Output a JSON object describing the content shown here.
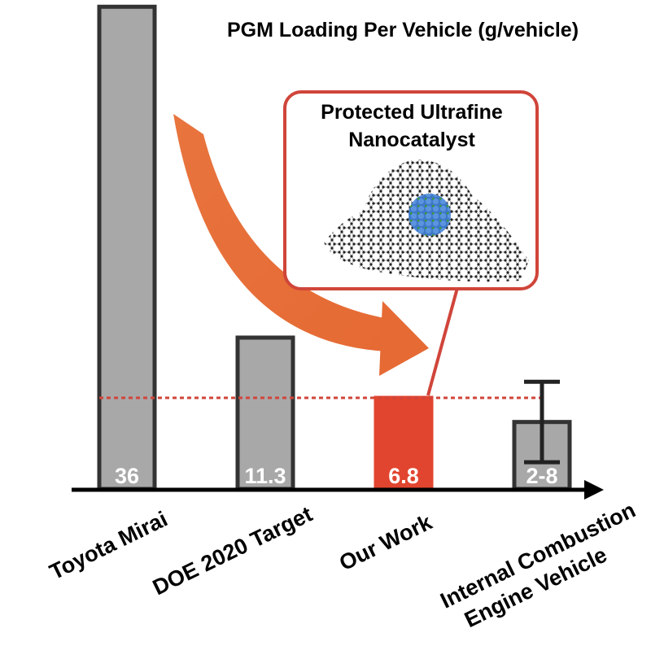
{
  "chart_data": {
    "type": "bar",
    "title": "PGM Loading Per Vehicle (g/vehicle)",
    "xlabel": "",
    "ylabel": "",
    "ylim": [
      0,
      36.2
    ],
    "grid": false,
    "categories": [
      [
        "Toyota Mirai"
      ],
      [
        "DOE  2020 Target"
      ],
      [
        "Our Work"
      ],
      [
        "Internal  Combustion",
        "Engine Vehicle"
      ]
    ],
    "values": [
      36,
      11.3,
      6.8,
      5
    ],
    "value_labels": [
      "36",
      "11.3",
      "6.8",
      "2-8"
    ],
    "error_range": [
      null,
      null,
      null,
      [
        2,
        8
      ]
    ],
    "reference_line": {
      "value": 6.8,
      "style": "dotted"
    },
    "highlight_index": 2,
    "callout": {
      "lines": [
        "Protected Ultrafine",
        "Nanocatalyst"
      ],
      "target_index": 2
    }
  },
  "colors": {
    "bar_fill": "#a9a8a9",
    "bar_border": "#333333",
    "highlight": "#e2452f",
    "reference_line": "#d0453a",
    "arrow": "#e8703a",
    "callout_border": "#d0453a"
  }
}
